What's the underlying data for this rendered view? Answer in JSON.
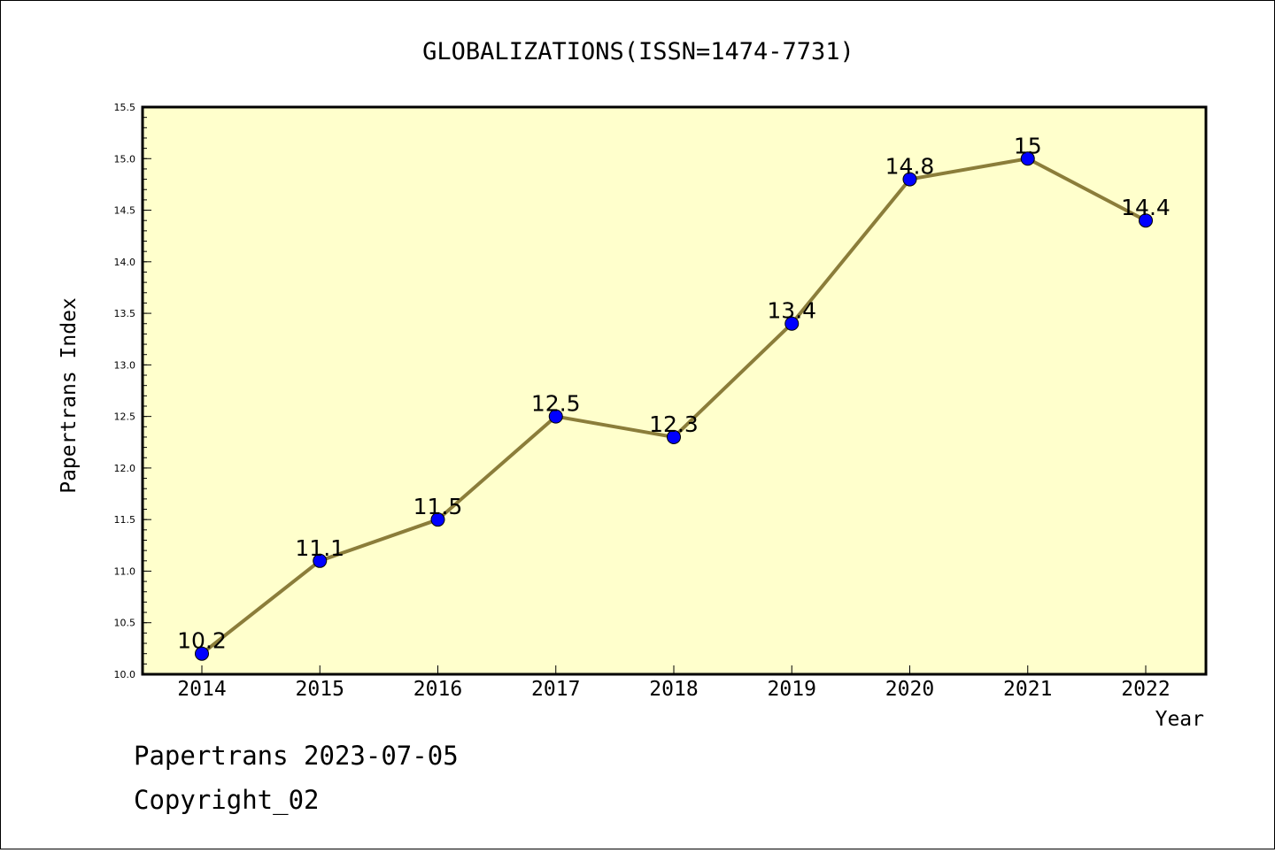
{
  "chart_data": {
    "type": "line",
    "title": "GLOBALIZATIONS(ISSN=1474-7731)",
    "xlabel": "Year",
    "ylabel": "Papertrans Index",
    "categories": [
      "2014",
      "2015",
      "2016",
      "2017",
      "2018",
      "2019",
      "2020",
      "2021",
      "2022"
    ],
    "series": [
      {
        "values": [
          10.2,
          11.1,
          11.5,
          12.5,
          12.3,
          13.4,
          14.8,
          15,
          14.4
        ],
        "labels": [
          "10.2",
          "11.1",
          "11.5",
          "12.5",
          "12.3",
          "13.4",
          "14.8",
          "15",
          "14.4"
        ]
      }
    ],
    "ylim": [
      10.0,
      15.5
    ],
    "yticks": [
      "10.0",
      "10.5",
      "11.0",
      "11.5",
      "12.0",
      "12.5",
      "13.0",
      "13.5",
      "14.0",
      "14.5",
      "15.0",
      "15.5"
    ],
    "grid": false,
    "legend": "none",
    "colors": {
      "plot_background": "#ffffcc",
      "line": "#8b7d3a",
      "marker": "#0000ff"
    }
  },
  "footer": {
    "line1": "Papertrans 2023-07-05",
    "line2": "Copyright_02"
  }
}
